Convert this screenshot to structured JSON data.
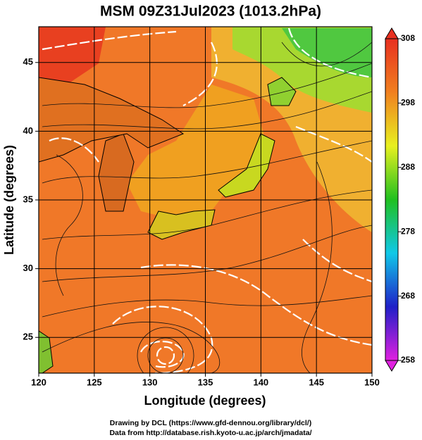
{
  "map": {
    "title": "MSM 09Z31Jul2023 (1013.2hPa)",
    "xlabel": "Longitude (degrees)",
    "ylabel": "Latitude  (degrees)",
    "xlim": [
      120,
      150
    ],
    "xticks": [
      120,
      125,
      130,
      135,
      140,
      145,
      150
    ],
    "ylim": [
      22.4,
      47.6
    ],
    "yticks": [
      25,
      30,
      35,
      40,
      45
    ],
    "colorbar": {
      "lim": [
        258,
        308
      ],
      "ticks": [
        258,
        268,
        278,
        288,
        298,
        308
      ],
      "colors": [
        "#e020e0",
        "#2020c8",
        "#10c8e8",
        "#20c020",
        "#e8f020",
        "#f08020",
        "#e83020"
      ]
    },
    "credits": [
      "Drawing by DCL (https://www.gfd-dennou.org/library/dcl/)",
      "Data from http://database.rish.kyoto-u.ac.jp/arch/jmadata/"
    ]
  }
}
